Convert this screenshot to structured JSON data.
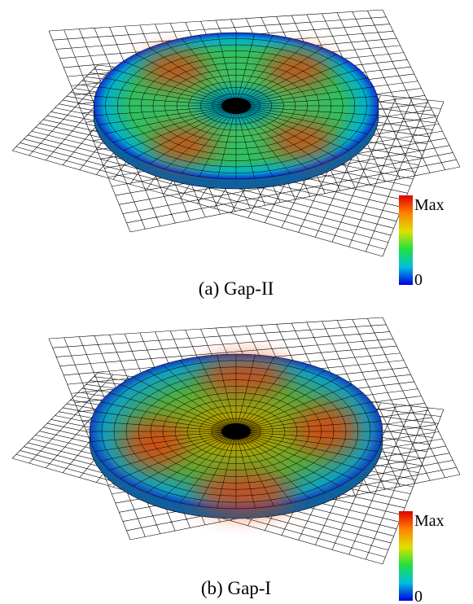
{
  "panels": [
    {
      "caption": "(a) Gap-II",
      "colorbar": {
        "max_label": "Max",
        "min_label": "0"
      }
    },
    {
      "caption": "(b) Gap-I",
      "colorbar": {
        "max_label": "Max",
        "min_label": "0"
      }
    }
  ]
}
